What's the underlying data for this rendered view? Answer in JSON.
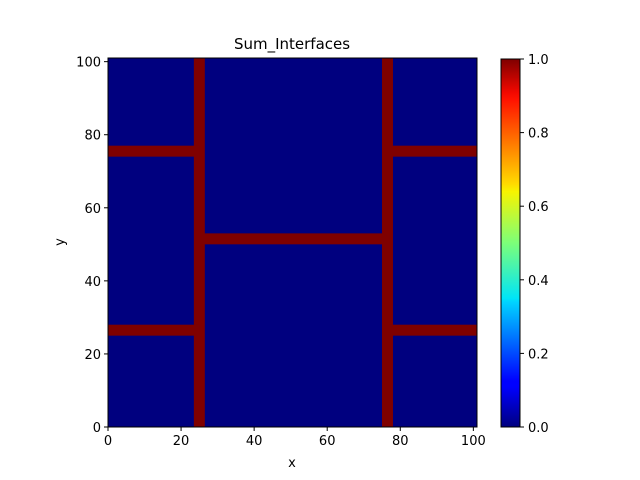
{
  "chart_data": {
    "type": "heatmap",
    "title": "Sum_Interfaces",
    "xlabel": "x",
    "ylabel": "y",
    "xlim": [
      0,
      101
    ],
    "ylim": [
      0,
      101
    ],
    "xticks": [
      0,
      20,
      40,
      60,
      80,
      100
    ],
    "yticks": [
      0,
      20,
      40,
      60,
      80,
      100
    ],
    "colormap": "jet",
    "colorbar": {
      "range": [
        0.0,
        1.0
      ],
      "ticks": [
        "0.0",
        "0.2",
        "0.4",
        "0.6",
        "0.8",
        "1.0"
      ]
    },
    "background_value": 0.0,
    "interfaces": [
      {
        "label": "left vertical interface",
        "value": 1.0,
        "x": [
          23.5,
          26.5
        ],
        "y": [
          0,
          101
        ]
      },
      {
        "label": "right vertical interface",
        "value": 1.0,
        "x": [
          75.0,
          78.0
        ],
        "y": [
          0,
          101
        ]
      },
      {
        "label": "left upper horizontal interface",
        "value": 1.0,
        "x": [
          0,
          25
        ],
        "y": [
          74,
          77
        ]
      },
      {
        "label": "left lower horizontal interface",
        "value": 1.0,
        "x": [
          0,
          25
        ],
        "y": [
          25,
          28
        ]
      },
      {
        "label": "center horizontal interface",
        "value": 1.0,
        "x": [
          25,
          77
        ],
        "y": [
          50,
          53
        ]
      },
      {
        "label": "right upper horizontal interface",
        "value": 1.0,
        "x": [
          77,
          101
        ],
        "y": [
          74,
          77
        ]
      },
      {
        "label": "right lower horizontal interface",
        "value": 1.0,
        "x": [
          77,
          101
        ],
        "y": [
          25,
          28
        ]
      }
    ]
  }
}
